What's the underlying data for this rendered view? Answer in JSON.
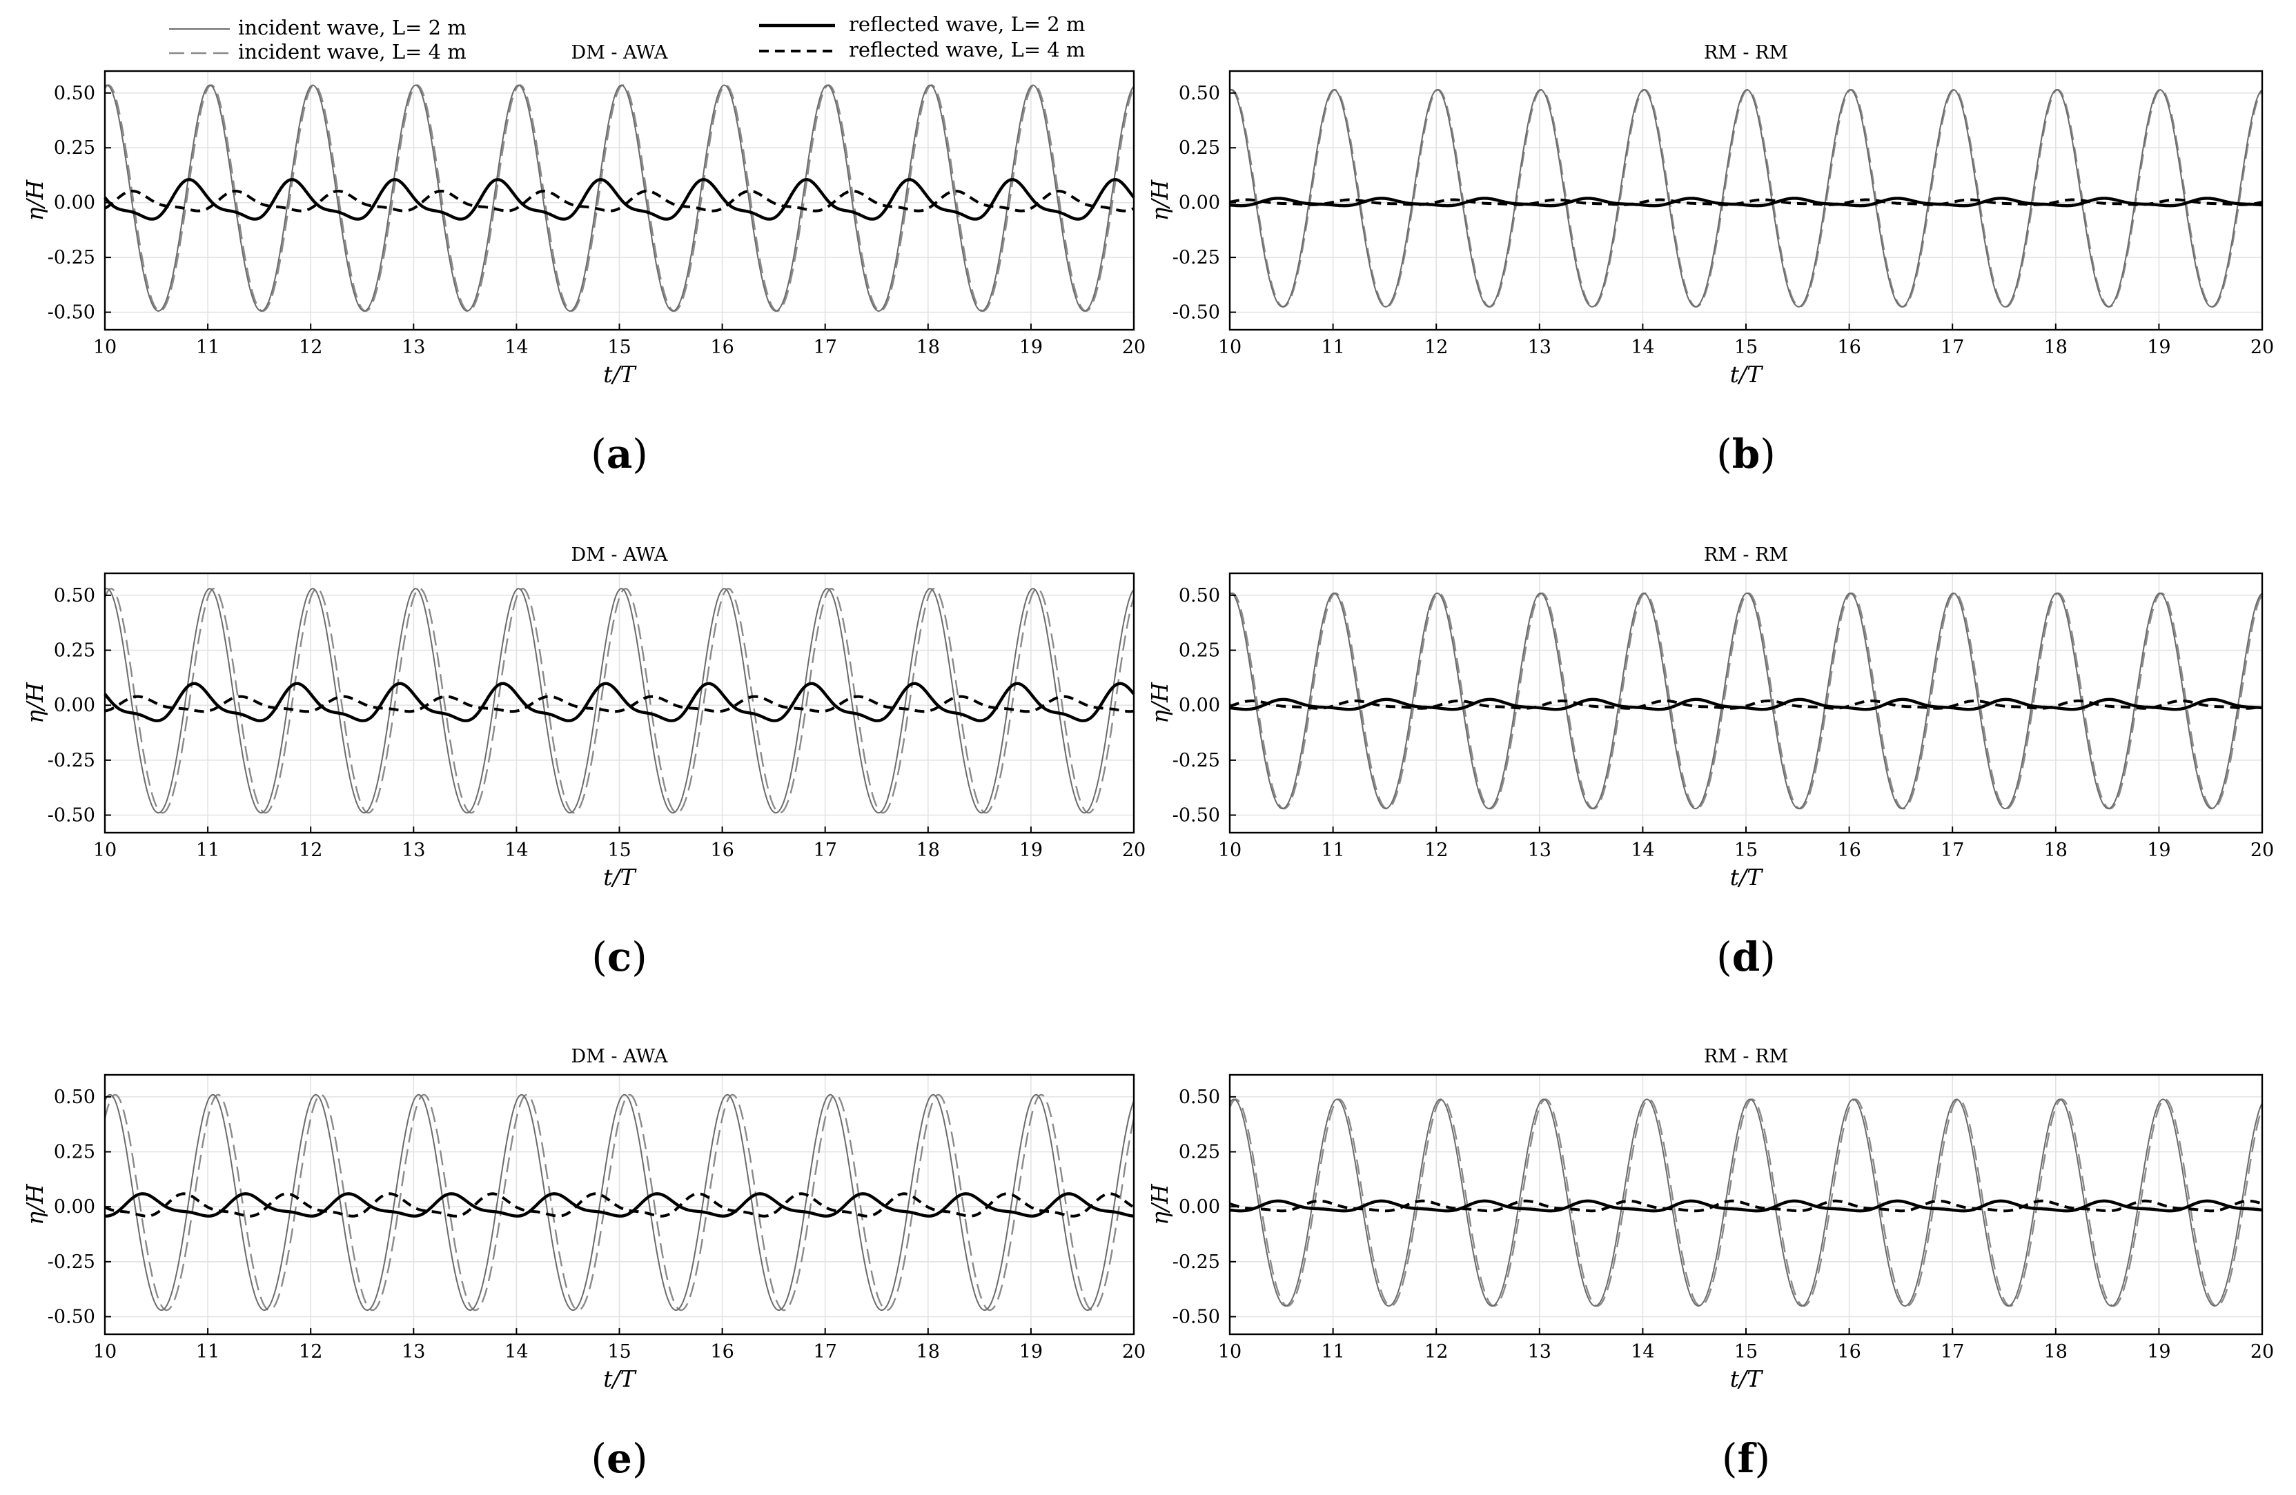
{
  "legend": [
    {
      "key": "inc2",
      "label": "incident wave, L= 2 m"
    },
    {
      "key": "inc4",
      "label": "incident wave, L= 4 m"
    },
    {
      "key": "ref2",
      "label": "reflected wave, L= 2 m"
    },
    {
      "key": "ref4",
      "label": "reflected wave, L= 4 m"
    }
  ],
  "chart_data": [
    {
      "id": "a",
      "label": "a",
      "type": "line",
      "title": "DM - AWA",
      "xlabel": "t/T",
      "ylabel": "η/H",
      "xlim": [
        10,
        20
      ],
      "ylim": [
        -0.58,
        0.6
      ],
      "xticks": [
        10,
        11,
        12,
        13,
        14,
        15,
        16,
        17,
        18,
        19,
        20
      ],
      "yticks": [
        -0.5,
        -0.25,
        0,
        0.25,
        0.5
      ],
      "ytick_labels": [
        "-0.50",
        "-0.25",
        "0.00",
        "0.25",
        "0.50"
      ],
      "grid": true,
      "legend": "top-left",
      "series": [
        {
          "key": "inc2",
          "name": "incident wave, L= 2 m",
          "amplitude": 0.515,
          "phase": 0.02
        },
        {
          "key": "inc4",
          "name": "incident wave, L= 4 m",
          "amplitude": 0.515,
          "phase": 0.035
        },
        {
          "key": "ref2",
          "name": "reflected wave, L= 2 m",
          "amplitude": 0.08,
          "phase": 0.85
        },
        {
          "key": "ref4",
          "name": "reflected wave, L= 4 m",
          "amplitude": 0.04,
          "phase": 0.3
        }
      ]
    },
    {
      "id": "b",
      "label": "b",
      "type": "line",
      "title": "RM - RM",
      "xlabel": "t/T",
      "ylabel": "η/H",
      "xlim": [
        10,
        20
      ],
      "ylim": [
        -0.58,
        0.6
      ],
      "xticks": [
        10,
        11,
        12,
        13,
        14,
        15,
        16,
        17,
        18,
        19,
        20
      ],
      "yticks": [
        -0.5,
        -0.25,
        0,
        0.25,
        0.5
      ],
      "ytick_labels": [
        "-0.50",
        "-0.25",
        "0.00",
        "0.25",
        "0.50"
      ],
      "grid": true,
      "series": [
        {
          "key": "inc2",
          "name": "incident wave, L= 2 m",
          "amplitude": 0.495,
          "phase": 0.01
        },
        {
          "key": "inc4",
          "name": "incident wave, L= 4 m",
          "amplitude": 0.495,
          "phase": 0.02
        },
        {
          "key": "ref2",
          "name": "reflected wave, L= 2 m",
          "amplitude": 0.015,
          "phase": 0.5
        },
        {
          "key": "ref4",
          "name": "reflected wave, L= 4 m",
          "amplitude": 0.01,
          "phase": 0.2
        }
      ]
    },
    {
      "id": "c",
      "label": "c",
      "type": "line",
      "title": "DM - AWA",
      "xlabel": "t/T",
      "ylabel": "η/H",
      "xlim": [
        10,
        20
      ],
      "ylim": [
        -0.58,
        0.6
      ],
      "xticks": [
        10,
        11,
        12,
        13,
        14,
        15,
        16,
        17,
        18,
        19,
        20
      ],
      "yticks": [
        -0.5,
        -0.25,
        0,
        0.25,
        0.5
      ],
      "ytick_labels": [
        "-0.50",
        "-0.25",
        "0.00",
        "0.25",
        "0.50"
      ],
      "grid": true,
      "series": [
        {
          "key": "inc2",
          "name": "incident wave, L= 2 m",
          "amplitude": 0.51,
          "phase": 0.02
        },
        {
          "key": "inc4",
          "name": "incident wave, L= 4 m",
          "amplitude": 0.51,
          "phase": 0.06
        },
        {
          "key": "ref2",
          "name": "reflected wave, L= 2 m",
          "amplitude": 0.075,
          "phase": 0.9
        },
        {
          "key": "ref4",
          "name": "reflected wave, L= 4 m",
          "amplitude": 0.03,
          "phase": 0.35
        }
      ]
    },
    {
      "id": "d",
      "label": "d",
      "type": "line",
      "title": "RM - RM",
      "xlabel": "t/T",
      "ylabel": "η/H",
      "xlim": [
        10,
        20
      ],
      "ylim": [
        -0.58,
        0.6
      ],
      "xticks": [
        10,
        11,
        12,
        13,
        14,
        15,
        16,
        17,
        18,
        19,
        20
      ],
      "yticks": [
        -0.5,
        -0.25,
        0,
        0.25,
        0.5
      ],
      "ytick_labels": [
        "-0.50",
        "-0.25",
        "0.00",
        "0.25",
        "0.50"
      ],
      "grid": true,
      "series": [
        {
          "key": "inc2",
          "name": "incident wave, L= 2 m",
          "amplitude": 0.49,
          "phase": 0.01
        },
        {
          "key": "inc4",
          "name": "incident wave, L= 4 m",
          "amplitude": 0.49,
          "phase": 0.025
        },
        {
          "key": "ref2",
          "name": "reflected wave, L= 2 m",
          "amplitude": 0.02,
          "phase": 0.55
        },
        {
          "key": "ref4",
          "name": "reflected wave, L= 4 m",
          "amplitude": 0.015,
          "phase": 0.25
        }
      ]
    },
    {
      "id": "e",
      "label": "e",
      "type": "line",
      "title": "DM - AWA",
      "xlabel": "t/T",
      "ylabel": "η/H",
      "xlim": [
        10,
        20
      ],
      "ylim": [
        -0.58,
        0.6
      ],
      "xticks": [
        10,
        11,
        12,
        13,
        14,
        15,
        16,
        17,
        18,
        19,
        20
      ],
      "yticks": [
        -0.5,
        -0.25,
        0,
        0.25,
        0.5
      ],
      "ytick_labels": [
        "-0.50",
        "-0.25",
        "0.00",
        "0.25",
        "0.50"
      ],
      "grid": true,
      "series": [
        {
          "key": "inc2",
          "name": "incident wave, L= 2 m",
          "amplitude": 0.49,
          "phase": 0.05
        },
        {
          "key": "inc4",
          "name": "incident wave, L= 4 m",
          "amplitude": 0.49,
          "phase": 0.1
        },
        {
          "key": "ref2",
          "name": "reflected wave, L= 2 m",
          "amplitude": 0.045,
          "phase": 0.4
        },
        {
          "key": "ref4",
          "name": "reflected wave, L= 4 m",
          "amplitude": 0.045,
          "phase": 0.8
        }
      ]
    },
    {
      "id": "f",
      "label": "f",
      "type": "line",
      "title": "RM - RM",
      "xlabel": "t/T",
      "ylabel": "η/H",
      "xlim": [
        10,
        20
      ],
      "ylim": [
        -0.58,
        0.6
      ],
      "xticks": [
        10,
        11,
        12,
        13,
        14,
        15,
        16,
        17,
        18,
        19,
        20
      ],
      "yticks": [
        -0.5,
        -0.25,
        0,
        0.25,
        0.5
      ],
      "ytick_labels": [
        "-0.50",
        "-0.25",
        "0.00",
        "0.25",
        "0.50"
      ],
      "grid": true,
      "series": [
        {
          "key": "inc2",
          "name": "incident wave, L= 2 m",
          "amplitude": 0.47,
          "phase": 0.04
        },
        {
          "key": "inc4",
          "name": "incident wave, L= 4 m",
          "amplitude": 0.47,
          "phase": 0.06
        },
        {
          "key": "ref2",
          "name": "reflected wave, L= 2 m",
          "amplitude": 0.02,
          "phase": 0.5
        },
        {
          "key": "ref4",
          "name": "reflected wave, L= 4 m",
          "amplitude": 0.02,
          "phase": 0.9
        }
      ]
    }
  ]
}
